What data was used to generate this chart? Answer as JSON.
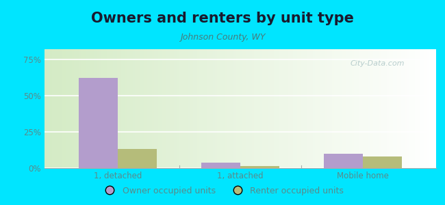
{
  "title": "Owners and renters by unit type",
  "subtitle": "Johnson County, WY",
  "categories": [
    "1, detached",
    "1, attached",
    "Mobile home"
  ],
  "owner_values": [
    62,
    4,
    10
  ],
  "renter_values": [
    13,
    1.5,
    8
  ],
  "owner_color": "#b39dcc",
  "renter_color": "#b5bc7a",
  "bg_left_color": "#d4e8c2",
  "bg_right_color": "#f0f8f0",
  "outer_background": "#00e5ff",
  "yticks": [
    0,
    25,
    50,
    75
  ],
  "ytick_labels": [
    "0%",
    "25%",
    "50%",
    "75%"
  ],
  "ylim": [
    0,
    82
  ],
  "bar_width": 0.32,
  "title_fontsize": 15,
  "subtitle_fontsize": 9,
  "tick_fontsize": 8.5,
  "legend_fontsize": 9,
  "watermark_text": "City-Data.com",
  "title_color": "#1a1a2e",
  "subtitle_color": "#4a7a7a",
  "tick_color": "#5a8a8a"
}
